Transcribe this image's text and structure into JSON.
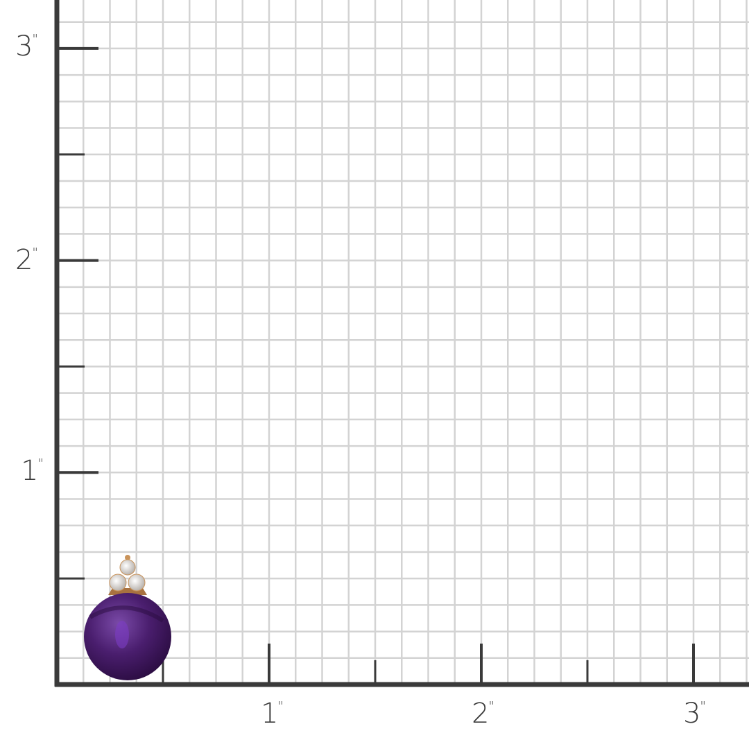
{
  "ruler": {
    "unit_mark": "\"",
    "y_labels": [
      "3",
      "2",
      "1"
    ],
    "x_labels": [
      "1",
      "2",
      "3"
    ],
    "minor_divisions_per_inch": 8,
    "grid_color": "#d3d3d3",
    "axis_color": "#3a3a3a"
  },
  "product": {
    "icon": "amethyst-bead-pendant-with-three-diamonds",
    "stone_color": "#4a1e6e",
    "metal_color": "#c9935a"
  }
}
